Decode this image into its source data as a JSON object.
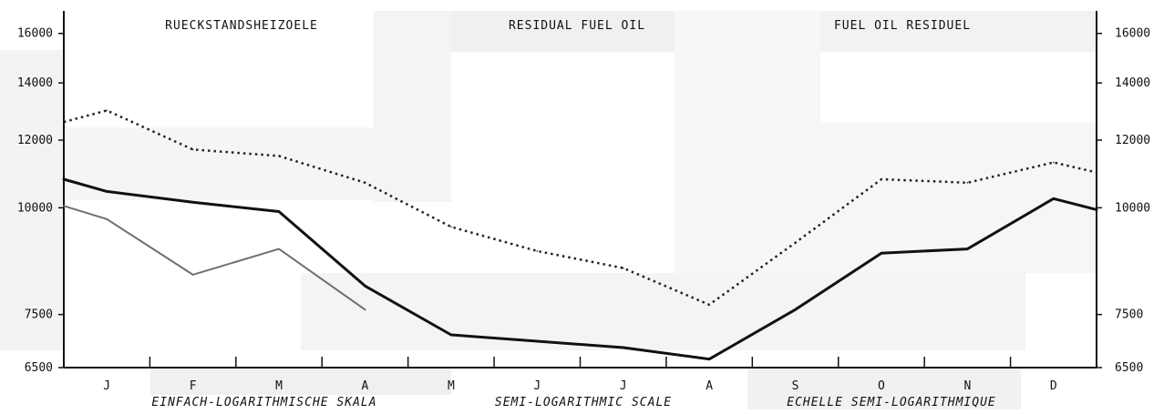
{
  "chart_data": {
    "type": "line",
    "titles": [
      "RUECKSTANDSHEIZOELE",
      "RESIDUAL FUEL OIL",
      "FUEL OIL RESIDUEL"
    ],
    "scale_labels": [
      "EINFACH-LOGARITHMISCHE SKALA",
      "SEMI-LOGARITHMIC SCALE",
      "ECHELLE SEMI-LOGARITHMIQUE"
    ],
    "x_categories": [
      "J",
      "F",
      "M",
      "A",
      "M",
      "J",
      "J",
      "A",
      "S",
      "O",
      "N",
      "D"
    ],
    "y_scale": "log",
    "ylim": [
      6500,
      17000
    ],
    "y_ticks_left": [
      "16000",
      "14000",
      "12000",
      "10000",
      "7500",
      "6500"
    ],
    "y_ticks_right": [
      "16000",
      "14000",
      "12000",
      "10000",
      "7500",
      "6500"
    ],
    "grid": false,
    "series": [
      {
        "style": "dotted",
        "color": "#222222",
        "points": [
          [
            0.0,
            12600
          ],
          [
            0.5,
            13000
          ],
          [
            1.5,
            11700
          ],
          [
            2.5,
            11500
          ],
          [
            3.5,
            10700
          ],
          [
            4.5,
            9500
          ],
          [
            5.5,
            8900
          ],
          [
            6.5,
            8500
          ],
          [
            7.5,
            7700
          ],
          [
            8.5,
            9100
          ],
          [
            9.5,
            10800
          ],
          [
            10.5,
            10700
          ],
          [
            11.5,
            11300
          ],
          [
            12.0,
            11000
          ]
        ]
      },
      {
        "style": "solid",
        "color": "#111111",
        "points": [
          [
            0.0,
            10800
          ],
          [
            0.5,
            10450
          ],
          [
            1.5,
            10150
          ],
          [
            2.5,
            9900
          ],
          [
            3.5,
            8100
          ],
          [
            4.5,
            7100
          ],
          [
            5.5,
            6980
          ],
          [
            6.5,
            6860
          ],
          [
            7.5,
            6650
          ],
          [
            8.5,
            7600
          ],
          [
            9.5,
            8850
          ],
          [
            10.5,
            8950
          ],
          [
            11.5,
            10250
          ],
          [
            12.0,
            9950
          ]
        ]
      },
      {
        "style": "solid-thin",
        "color": "#6f6f6f",
        "points": [
          [
            0.0,
            10050
          ],
          [
            0.5,
            9700
          ],
          [
            1.5,
            8350
          ],
          [
            2.5,
            8950
          ],
          [
            3.5,
            7600
          ]
        ]
      }
    ]
  }
}
